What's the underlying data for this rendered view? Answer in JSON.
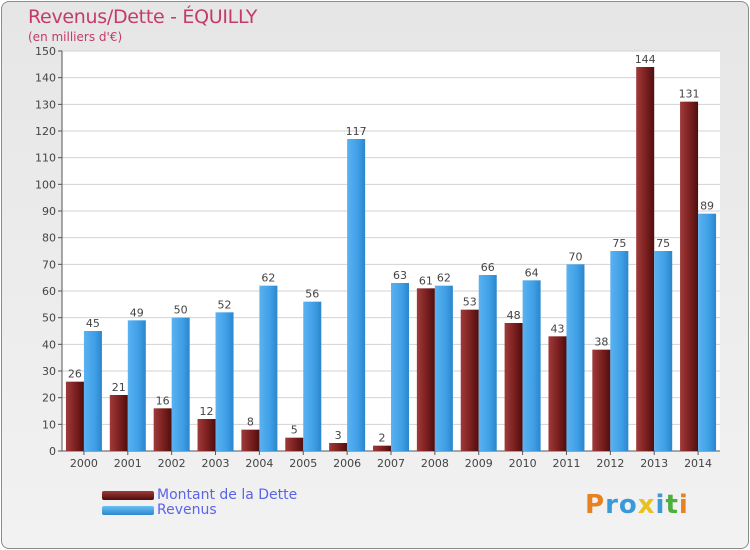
{
  "title": "Revenus/Dette - ÉQUILLY",
  "subtitle": "(en milliers d'€)",
  "colors": {
    "debt": "#7a1f1f",
    "revenue": "#3f9fe6",
    "title": "#c43a6a",
    "legend_text": "#5a64e6"
  },
  "legend": [
    {
      "label": "Montant de la Dette",
      "color": "#7a1f1f"
    },
    {
      "label": "Revenus",
      "color": "#3f9fe6"
    }
  ],
  "logo": {
    "text": "Proxiti"
  },
  "chart_data": {
    "type": "bar",
    "title": "Revenus/Dette - ÉQUILLY",
    "ylabel": "(en milliers d'€)",
    "categories": [
      "2000",
      "2001",
      "2002",
      "2003",
      "2004",
      "2005",
      "2006",
      "2007",
      "2008",
      "2009",
      "2010",
      "2011",
      "2012",
      "2013",
      "2014"
    ],
    "series": [
      {
        "name": "Montant de la Dette",
        "values": [
          26,
          21,
          16,
          12,
          8,
          5,
          3,
          2,
          61,
          53,
          48,
          43,
          38,
          144,
          131
        ]
      },
      {
        "name": "Revenus",
        "values": [
          45,
          49,
          50,
          52,
          62,
          56,
          117,
          63,
          62,
          66,
          64,
          70,
          75,
          75,
          89
        ]
      }
    ],
    "yticks": [
      0,
      10,
      20,
      30,
      40,
      50,
      60,
      70,
      80,
      90,
      100,
      110,
      120,
      130,
      140,
      150
    ],
    "ylim": [
      0,
      150
    ],
    "grid": true
  }
}
